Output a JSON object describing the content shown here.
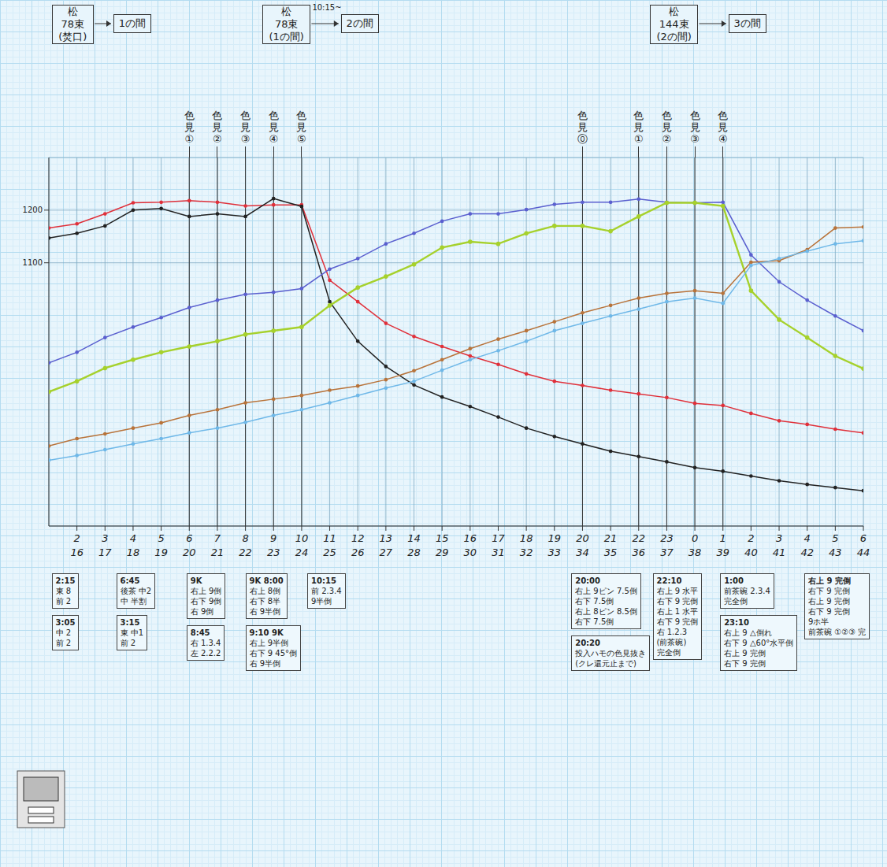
{
  "chart_data": {
    "type": "line",
    "grid": true,
    "marker": "circle",
    "x": [
      15,
      16,
      17,
      18,
      19,
      20,
      21,
      22,
      23,
      24,
      25,
      26,
      27,
      28,
      29,
      30,
      31,
      32,
      33,
      34,
      35,
      36,
      37,
      38,
      39,
      40,
      41,
      42,
      43,
      44
    ],
    "xlim": [
      15,
      44
    ],
    "xticks": [
      16,
      17,
      18,
      19,
      20,
      21,
      22,
      23,
      24,
      25,
      26,
      27,
      28,
      29,
      30,
      31,
      32,
      33,
      34,
      35,
      36,
      37,
      38,
      39,
      40,
      41,
      42,
      43,
      44
    ],
    "time_labels": [
      "2",
      "3",
      "4",
      "5",
      "6",
      "7",
      "8",
      "9",
      "10",
      "11",
      "12",
      "13",
      "14",
      "15",
      "16",
      "17",
      "18",
      "19",
      "20",
      "21",
      "22",
      "23",
      "0",
      "1",
      "2",
      "3",
      "4",
      "5",
      "6"
    ],
    "ylim": [
      600,
      1300
    ],
    "yticks": [
      1100,
      1200
    ],
    "series": [
      {
        "color": "#e0303a",
        "values": [
          1166,
          1174,
          1193,
          1214,
          1215,
          1218,
          1215,
          1208,
          1210,
          1210,
          1067,
          1026,
          985,
          960,
          941,
          923,
          907,
          889,
          875,
          867,
          858,
          851,
          844,
          833,
          829,
          814,
          800,
          793,
          784,
          777
        ]
      },
      {
        "color": "#222222",
        "values": [
          1147,
          1156,
          1170,
          1200,
          1203,
          1188,
          1193,
          1188,
          1222,
          1207,
          1026,
          951,
          903,
          868,
          845,
          827,
          807,
          786,
          770,
          756,
          742,
          732,
          722,
          711,
          704,
          695,
          686,
          679,
          673,
          667
        ]
      },
      {
        "color": "#5a5fcf",
        "values": [
          910,
          930,
          958,
          978,
          996,
          1015,
          1029,
          1040,
          1044,
          1051,
          1088,
          1108,
          1136,
          1156,
          1179,
          1193,
          1193,
          1201,
          1211,
          1215,
          1215,
          1221,
          1215,
          1214,
          1215,
          1115,
          1064,
          1029,
          999,
          971
        ]
      },
      {
        "color": "#a6d12c",
        "values": [
          855,
          875,
          900,
          916,
          930,
          941,
          951,
          964,
          971,
          978,
          1019,
          1053,
          1074,
          1097,
          1129,
          1140,
          1136,
          1156,
          1170,
          1170,
          1160,
          1188,
          1214,
          1214,
          1208,
          1047,
          992,
          958,
          923,
          899
        ]
      },
      {
        "color": "#b8733a",
        "values": [
          752,
          766,
          775,
          786,
          796,
          810,
          821,
          834,
          841,
          848,
          858,
          866,
          878,
          895,
          916,
          937,
          955,
          971,
          988,
          1005,
          1019,
          1033,
          1042,
          1047,
          1042,
          1101,
          1104,
          1125,
          1166,
          1168
        ]
      },
      {
        "color": "#6fb8e8",
        "values": [
          725,
          734,
          745,
          756,
          766,
          777,
          786,
          797,
          810,
          821,
          834,
          848,
          862,
          875,
          896,
          916,
          933,
          951,
          971,
          985,
          999,
          1012,
          1026,
          1033,
          1023,
          1095,
          1108,
          1122,
          1136,
          1142
        ]
      }
    ],
    "headers": [
      {
        "x": 15.1,
        "lines": [
          "松",
          "78束",
          "(焚口)"
        ],
        "to": "1の間",
        "to_x": 17.3
      },
      {
        "x": 22.6,
        "lines": [
          "松",
          "78束",
          "(1の間)"
        ],
        "time": "10:15~",
        "to": "2の間",
        "to_x": 25.4
      },
      {
        "x": 36.4,
        "lines": [
          "松",
          "144束",
          "(2の間)"
        ],
        "to": "3の間",
        "to_x": 39.2
      }
    ],
    "markers": [
      {
        "x": 20,
        "label": "色見①"
      },
      {
        "x": 21,
        "label": "色見②"
      },
      {
        "x": 22,
        "label": "色見③"
      },
      {
        "x": 23,
        "label": "色見④"
      },
      {
        "x": 24,
        "label": "色見⑤"
      },
      {
        "x": 34,
        "label": "色見⓪"
      },
      {
        "x": 36,
        "label": "色見①"
      },
      {
        "x": 37,
        "label": "色見②"
      },
      {
        "x": 38,
        "label": "色見③"
      },
      {
        "x": 39,
        "label": "色見④"
      }
    ],
    "notes": [
      {
        "x": 15.1,
        "lines": [
          "2:15",
          "東 8",
          "前 2"
        ]
      },
      {
        "x": 15.1,
        "lines": [
          "3:05",
          "中 2",
          "前 2"
        ]
      },
      {
        "x": 17.4,
        "lines": [
          "6:45",
          "後茶 中2",
          "中 半割"
        ]
      },
      {
        "x": 17.4,
        "lines": [
          "3:15",
          "東 中1",
          "前 2"
        ]
      },
      {
        "x": 19.9,
        "lines": [
          "9K",
          "右上 9倒",
          "右下 9倒",
          "右 9倒"
        ]
      },
      {
        "x": 19.9,
        "lines": [
          "8:45",
          "右 1.3.4",
          "左 2.2.2"
        ]
      },
      {
        "x": 22.0,
        "lines": [
          "9K 8:00",
          "右上 8倒",
          "右下 8半",
          "右 9半倒"
        ]
      },
      {
        "x": 22.0,
        "lines": [
          "9:10 9K",
          "右上 9半倒",
          "右下 9 45°倒",
          "右 9半倒"
        ]
      },
      {
        "x": 24.2,
        "lines": [
          "10:15",
          "前 2.3.4",
          "9半倒"
        ]
      },
      {
        "x": 33.6,
        "lines": [
          "20:00",
          "右上 9ピン 7.5倒",
          "右下 7.5倒",
          "右上 8ピン 8.5倒",
          "右下 7.5倒"
        ]
      },
      {
        "x": 33.6,
        "lines": [
          "20:20",
          "投入ハモの色見抜き",
          "(クレ還元止まで)"
        ]
      },
      {
        "x": 36.5,
        "lines": [
          "22:10",
          "右上 9 水平",
          "右下 9 完倒",
          "右上 1 水平",
          "右下 9 完倒",
          "右 1.2.3",
          "(前茶碗)",
          "完全倒"
        ]
      },
      {
        "x": 38.9,
        "lines": [
          "1:00",
          "前茶碗 2.3.4",
          "完全倒"
        ]
      },
      {
        "x": 38.9,
        "lines": [
          "23:10",
          "右上 9 △倒れ",
          "右下 9 △60°水平倒",
          "右上 9 完倒",
          "右下 9 完倒"
        ]
      },
      {
        "x": 41.9,
        "lines": [
          "右上 9 完倒",
          "右下 9 完倒",
          "右上 9 完倒",
          "右下 9 完倒",
          "9ホ半",
          "前茶碗 ①②③ 完"
        ]
      }
    ]
  }
}
